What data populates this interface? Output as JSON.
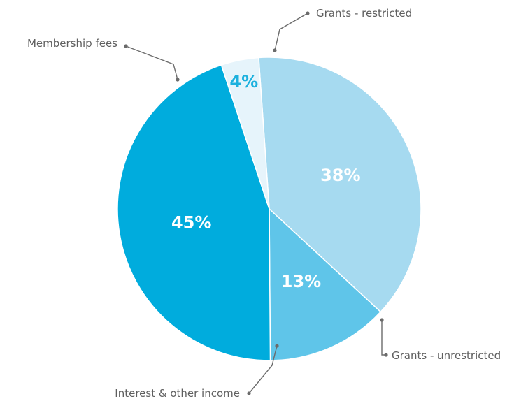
{
  "chart_data": {
    "type": "pie",
    "slices": [
      {
        "label": "Grants - unrestricted",
        "value": 38,
        "value_label": "38%",
        "color": "#a6daf0",
        "label_color": "#ffffff"
      },
      {
        "label": "Interest & other income",
        "value": 13,
        "value_label": "13%",
        "color": "#5fc5e9",
        "label_color": "#ffffff"
      },
      {
        "label": "Membership fees",
        "value": 45,
        "value_label": "45%",
        "color": "#00acdd",
        "label_color": "#ffffff"
      },
      {
        "label": "Grants - restricted",
        "value": 4,
        "value_label": "4%",
        "color": "#e6f4fb",
        "label_color": "#1cb1de"
      }
    ]
  }
}
